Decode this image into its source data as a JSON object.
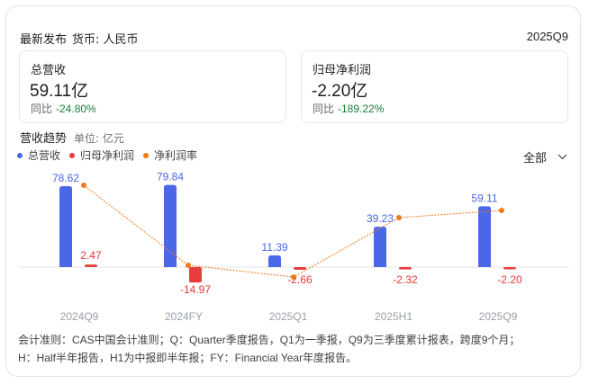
{
  "header": {
    "title": "最新发布",
    "currency": "货币: 人民币",
    "period": "2025Q9"
  },
  "cards": [
    {
      "label": "总营收",
      "value": "59.11亿",
      "yoy_label": "同比",
      "yoy": "-24.80%"
    },
    {
      "label": "归母净利润",
      "value": "-2.20亿",
      "yoy_label": "同比",
      "yoy": "-189.22%"
    }
  ],
  "trend": {
    "title": "营收趋势",
    "unit": "单位: 亿元",
    "filter_label": "全部",
    "legend": [
      {
        "label": "总营收",
        "color": "#4a67e8"
      },
      {
        "label": "归母净利润",
        "color": "#ea3e3e"
      },
      {
        "label": "净利润率",
        "color": "#f07a1a"
      }
    ]
  },
  "chart_data": {
    "type": "bar",
    "title": "营收趋势",
    "ylabel": "亿元",
    "categories": [
      "2024Q9",
      "2024FY",
      "2025Q1",
      "2025H1",
      "2025Q9"
    ],
    "series": [
      {
        "name": "总营收",
        "type": "bar",
        "color": "#4a67e8",
        "values": [
          78.62,
          79.84,
          11.39,
          39.23,
          59.11
        ]
      },
      {
        "name": "归母净利润",
        "type": "bar",
        "color": "#ea3e3e",
        "values": [
          2.47,
          -14.97,
          -2.66,
          -2.32,
          -2.2
        ]
      },
      {
        "name": "净利润率",
        "type": "line",
        "color": "#f07a1a",
        "values": [
          3.14,
          -18.75,
          -23.35,
          -5.91,
          -3.72
        ]
      }
    ],
    "grid": false,
    "legend_position": "top-left"
  },
  "footnote": {
    "line1": "会计准则：CAS中国会计准则；Q：Quarter季度报告，Q1为一季报，Q9为三季度累计报表，跨度9个月；",
    "line2": "H：Half半年报告，H1为中报即半年报；FY：Financial Year年度报告。"
  }
}
